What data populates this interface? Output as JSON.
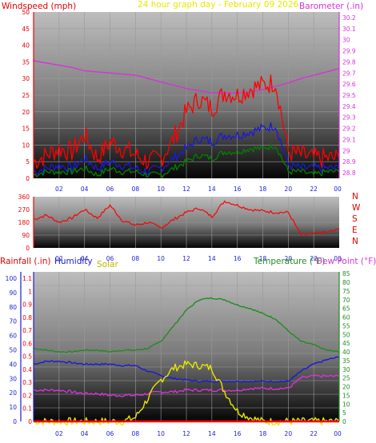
{
  "chart_data": [
    {
      "type": "line",
      "title": "24 hour graph day - February 09 2026",
      "left_axis_label": "Windspeed (mph)",
      "right_axis_label": "Barometer (.in)",
      "left_ticks": [
        "0",
        "5",
        "10",
        "15",
        "20",
        "25",
        "30",
        "35",
        "40",
        "45",
        "50"
      ],
      "right_ticks": [
        "28.8",
        "28.9",
        "29",
        "29.1",
        "29.2",
        "29.3",
        "29.4",
        "29.5",
        "29.6",
        "29.7",
        "29.8",
        "29.9",
        "30",
        "30.1",
        "30.2"
      ],
      "x_ticks": [
        "02",
        "04",
        "06",
        "08",
        "10",
        "12",
        "14",
        "16",
        "18",
        "20",
        "22",
        "00"
      ],
      "x_hours": [
        0,
        1,
        2,
        3,
        4,
        5,
        6,
        7,
        8,
        9,
        10,
        11,
        12,
        13,
        14,
        15,
        16,
        17,
        18,
        19,
        20,
        21,
        22,
        23,
        24
      ],
      "series": [
        {
          "axis": "right",
          "color": "#d633d6",
          "values": [
            29.81,
            29.79,
            29.77,
            29.75,
            29.72,
            29.71,
            29.7,
            29.69,
            29.68,
            29.65,
            29.62,
            29.59,
            29.56,
            29.54,
            29.52,
            29.52,
            29.52,
            29.53,
            29.55,
            29.58,
            29.61,
            29.65,
            29.68,
            29.71,
            29.74
          ]
        },
        {
          "axis": "left",
          "color": "#ff0000",
          "values": [
            5,
            7,
            9,
            8,
            13,
            6,
            11,
            9,
            7,
            5,
            6,
            12,
            20,
            24,
            21,
            26,
            25,
            27,
            28,
            29,
            8,
            7,
            6,
            6,
            6
          ]
        },
        {
          "axis": "left",
          "color": "#1a1ad8",
          "values": [
            2,
            3,
            4,
            3,
            6,
            3,
            5,
            4,
            3,
            2,
            3,
            6,
            9,
            12,
            11,
            13,
            13,
            14,
            15,
            16,
            4,
            3,
            3,
            3,
            3
          ]
        },
        {
          "axis": "left",
          "color": "#008000",
          "values": [
            1,
            2,
            2,
            2,
            3,
            1,
            3,
            2,
            2,
            1,
            1,
            3,
            5,
            7,
            6,
            8,
            8,
            9,
            9,
            10,
            2,
            2,
            1,
            2,
            2
          ]
        }
      ],
      "left_ylim": [
        0,
        50
      ],
      "right_ylim": [
        28.75,
        30.25
      ]
    },
    {
      "type": "line",
      "title": "",
      "left_ticks": [
        "0",
        "90",
        "180",
        "270",
        "360"
      ],
      "right_labels": [
        "N",
        "W",
        "S",
        "E",
        "N"
      ],
      "x_ticks": [
        "02",
        "04",
        "06",
        "08",
        "10",
        "12",
        "14",
        "16",
        "18",
        "20",
        "22",
        "00"
      ],
      "x_hours": [
        0,
        1,
        2,
        3,
        4,
        5,
        6,
        7,
        8,
        9,
        10,
        11,
        12,
        13,
        14,
        15,
        16,
        17,
        18,
        19,
        20,
        21,
        22,
        23,
        24
      ],
      "series": [
        {
          "color": "#ff0000",
          "values": [
            200,
            230,
            180,
            210,
            270,
            210,
            300,
            190,
            160,
            180,
            140,
            200,
            250,
            280,
            220,
            330,
            300,
            270,
            260,
            250,
            250,
            90,
            100,
            110,
            130
          ]
        }
      ],
      "ylim": [
        0,
        360
      ]
    },
    {
      "type": "line",
      "title": "",
      "labels": {
        "rainfall": "Rainfall (.in)",
        "humidity": "Humidity",
        "solar": "Solar",
        "temperature": "Temperature (°F)",
        "dewpoint": "Dew Point (°F)"
      },
      "rain_ticks": [
        "0",
        "0.1",
        "0.2",
        "0.3",
        "0.4",
        "0.5",
        "0.6",
        "0.7",
        "0.8",
        "0.9",
        "1",
        "1.1"
      ],
      "humidity_ticks": [
        "0",
        "10",
        "20",
        "30",
        "40",
        "50",
        "60",
        "70",
        "80",
        "90",
        "100"
      ],
      "temp_ticks": [
        "0",
        "5",
        "10",
        "15",
        "20",
        "25",
        "30",
        "35",
        "40",
        "45",
        "50",
        "55",
        "60",
        "65",
        "70",
        "75",
        "80",
        "85"
      ],
      "x_ticks": [
        "02",
        "04",
        "06",
        "08",
        "10",
        "12",
        "14",
        "16",
        "18",
        "20",
        "22",
        "00"
      ],
      "x_hours": [
        0,
        1,
        2,
        3,
        4,
        5,
        6,
        7,
        8,
        9,
        10,
        11,
        12,
        13,
        14,
        15,
        16,
        17,
        18,
        19,
        20,
        21,
        22,
        23,
        24
      ],
      "series": [
        {
          "name": "Temperature (°F)",
          "axis": "temp",
          "color": "#228b22",
          "values": [
            42,
            41,
            40,
            40,
            41,
            41,
            40,
            41,
            41,
            42,
            46,
            55,
            64,
            70,
            71,
            70,
            67,
            65,
            62,
            59,
            52,
            46,
            44,
            41,
            40
          ]
        },
        {
          "name": "Humidity",
          "axis": "humidity",
          "color": "#1a1ad8",
          "values": [
            40,
            42,
            42,
            41,
            40,
            40,
            40,
            39,
            39,
            35,
            32,
            30,
            29,
            28,
            28,
            28,
            28,
            28,
            28,
            28,
            28,
            35,
            40,
            43,
            45
          ]
        },
        {
          "name": "Dew Point (°F)",
          "axis": "temp",
          "color": "#d633d6",
          "values": [
            18,
            18,
            18,
            17,
            16,
            16,
            15,
            15,
            15,
            16,
            17,
            17,
            18,
            18,
            18,
            18,
            18,
            19,
            19,
            19,
            19,
            25,
            26,
            26,
            26
          ]
        },
        {
          "name": "Solar",
          "axis": "rain",
          "color": "#e6e600",
          "values": [
            0,
            0,
            0,
            0,
            0,
            0,
            0,
            0,
            0.03,
            0.18,
            0.32,
            0.41,
            0.44,
            0.43,
            0.41,
            0.23,
            0.08,
            0.03,
            0,
            0,
            0,
            0,
            0,
            0,
            0
          ]
        },
        {
          "name": "Rainfall (.in)",
          "axis": "rain",
          "color": "#ff0000",
          "values": [
            0,
            0,
            0,
            0,
            0,
            0,
            0,
            0,
            0,
            0,
            0,
            0,
            0,
            0,
            0,
            0,
            0,
            0,
            0,
            0,
            0,
            0,
            0,
            0,
            0
          ]
        }
      ],
      "rain_ylim": [
        0,
        1.15
      ],
      "humidity_ylim": [
        0,
        104.5
      ],
      "temp_ylim": [
        0,
        86
      ]
    }
  ]
}
